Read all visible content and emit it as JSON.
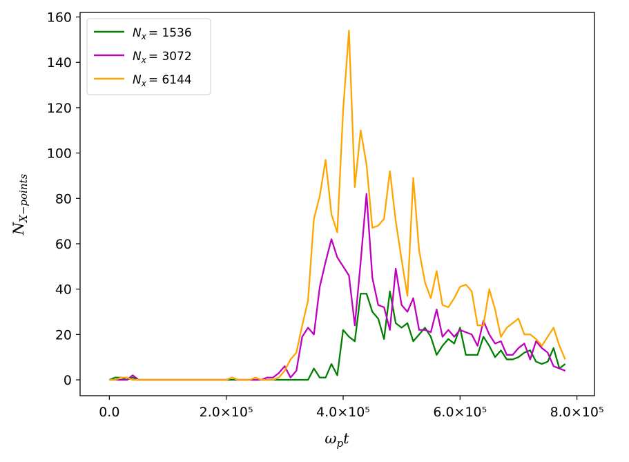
{
  "chart_data": {
    "type": "line",
    "xlabel": "ωpt",
    "ylabel": "NX−points",
    "xlim": [
      -50000,
      830000
    ],
    "ylim": [
      -7,
      162
    ],
    "x_ticks": [
      0,
      200000,
      400000,
      600000,
      800000
    ],
    "x_tick_labels": [
      "0.0",
      "2.0×10⁵",
      "4.0×10⁵",
      "6.0×10⁵",
      "8.0×10⁵"
    ],
    "y_ticks": [
      0,
      20,
      40,
      60,
      80,
      100,
      120,
      140,
      160
    ],
    "y_tick_labels": [
      "0",
      "20",
      "40",
      "60",
      "80",
      "100",
      "120",
      "140",
      "160"
    ],
    "grid": false,
    "legend_position": "top-left",
    "x": [
      0,
      10000,
      20000,
      30000,
      40000,
      50000,
      60000,
      70000,
      80000,
      90000,
      100000,
      110000,
      120000,
      130000,
      140000,
      150000,
      160000,
      170000,
      180000,
      190000,
      200000,
      210000,
      220000,
      230000,
      240000,
      250000,
      260000,
      270000,
      280000,
      290000,
      300000,
      310000,
      320000,
      330000,
      340000,
      350000,
      360000,
      370000,
      380000,
      390000,
      400000,
      410000,
      420000,
      430000,
      440000,
      450000,
      460000,
      470000,
      480000,
      490000,
      500000,
      510000,
      520000,
      530000,
      540000,
      550000,
      560000,
      570000,
      580000,
      590000,
      600000,
      610000,
      620000,
      630000,
      640000,
      650000,
      660000,
      670000,
      680000,
      690000,
      700000,
      710000,
      720000,
      730000,
      740000,
      750000,
      760000,
      770000,
      780000
    ],
    "series": [
      {
        "name": "N_x = 1536",
        "color": "#008000",
        "values": [
          0,
          1,
          1,
          0,
          1,
          0,
          0,
          0,
          0,
          0,
          0,
          0,
          0,
          0,
          0,
          0,
          0,
          0,
          0,
          0,
          0,
          0,
          0,
          0,
          0,
          0,
          0,
          0,
          0,
          0,
          0,
          0,
          0,
          0,
          0,
          5,
          1,
          1,
          7,
          2,
          22,
          19,
          17,
          38,
          38,
          30,
          27,
          18,
          39,
          25,
          23,
          25,
          17,
          20,
          23,
          19,
          11,
          15,
          18,
          16,
          23,
          11,
          11,
          11,
          19,
          15,
          10,
          13,
          9,
          9,
          10,
          12,
          13,
          8,
          7,
          8,
          14,
          5,
          7
        ]
      },
      {
        "name": "N_x = 3072",
        "color": "#bf00bf",
        "values": [
          0,
          0,
          0,
          0,
          2,
          0,
          0,
          0,
          0,
          0,
          0,
          0,
          0,
          0,
          0,
          0,
          0,
          0,
          0,
          0,
          0,
          1,
          0,
          0,
          0,
          0,
          0,
          1,
          1,
          3,
          6,
          1,
          4,
          19,
          23,
          20,
          41,
          52,
          62,
          54,
          50,
          46,
          24,
          52,
          82,
          45,
          33,
          32,
          22,
          49,
          33,
          30,
          36,
          22,
          22,
          21,
          31,
          19,
          22,
          19,
          22,
          21,
          20,
          15,
          26,
          20,
          16,
          17,
          11,
          11,
          14,
          16,
          9,
          17,
          14,
          12,
          6,
          5,
          4
        ]
      },
      {
        "name": "N_x = 6144",
        "color": "#ffa500",
        "values": [
          0,
          0,
          1,
          1,
          0,
          0,
          0,
          0,
          0,
          0,
          0,
          0,
          0,
          0,
          0,
          0,
          0,
          0,
          0,
          0,
          0,
          1,
          0,
          0,
          0,
          1,
          0,
          0,
          0,
          1,
          4,
          9,
          12,
          24,
          35,
          71,
          81,
          97,
          73,
          65,
          119,
          154,
          85,
          110,
          95,
          67,
          68,
          71,
          92,
          70,
          53,
          37,
          89,
          57,
          43,
          36,
          48,
          33,
          32,
          36,
          41,
          42,
          39,
          24,
          24,
          40,
          31,
          19,
          23,
          25,
          27,
          20,
          20,
          18,
          15,
          19,
          23,
          15,
          9
        ]
      }
    ]
  },
  "legend": {
    "entries": [
      {
        "symbol": "N",
        "subscript": "x",
        "value": "= 1536",
        "color": "#008000"
      },
      {
        "symbol": "N",
        "subscript": "x",
        "value": "= 3072",
        "color": "#bf00bf"
      },
      {
        "symbol": "N",
        "subscript": "x",
        "value": "= 6144",
        "color": "#ffa500"
      }
    ]
  }
}
